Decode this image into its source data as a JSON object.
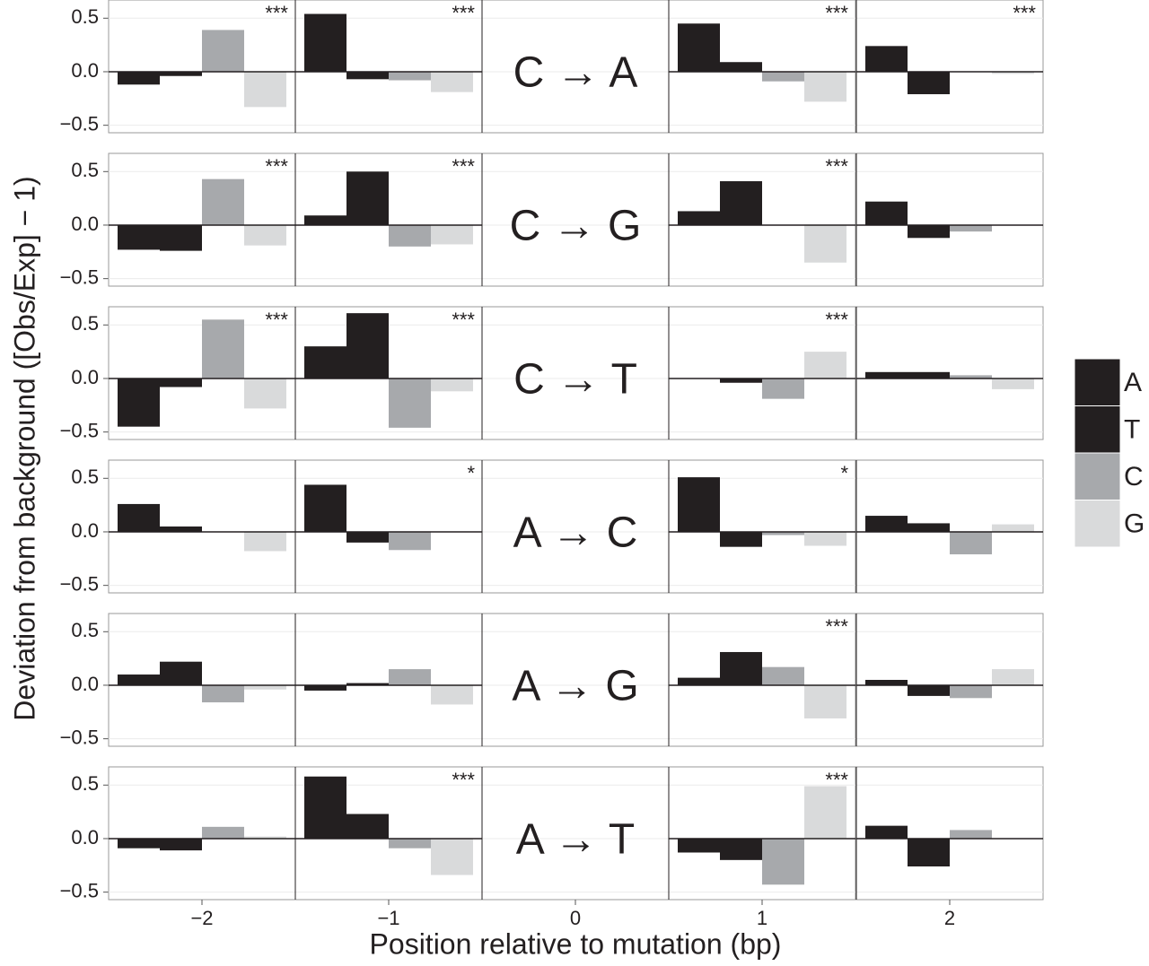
{
  "chart_data": {
    "type": "bar",
    "y_label": "Deviation from background ([Obs/Exp] − 1)",
    "x_label": "Position relative to mutation (bp)",
    "positions": [
      "−2",
      "−1",
      "0",
      "1",
      "2"
    ],
    "series": [
      {
        "name": "A",
        "color": "#231f20"
      },
      {
        "name": "T",
        "color": "#231f20"
      },
      {
        "name": "C",
        "color": "#a7a9ac"
      },
      {
        "name": "G",
        "color": "#d9dadb"
      }
    ],
    "ylim": [
      -0.57,
      0.67
    ],
    "yticks": [
      0.5,
      {
        "value": 0,
        "label": "0.0"
      },
      {
        "value": -0.5,
        "label": "−0.5"
      }
    ],
    "grid": true,
    "rows": [
      {
        "mutation": "C → A",
        "panels": [
          {
            "values": [
              -0.12,
              -0.04,
              0.39,
              -0.33
            ],
            "annotation": "***"
          },
          {
            "values": [
              0.54,
              -0.07,
              -0.08,
              -0.19
            ],
            "annotation": "***"
          },
          null,
          {
            "values": [
              0.45,
              0.09,
              -0.09,
              -0.28
            ],
            "annotation": "***"
          },
          {
            "values": [
              0.24,
              -0.21,
              0.0,
              -0.02
            ],
            "annotation": "***"
          }
        ]
      },
      {
        "mutation": "C → G",
        "panels": [
          {
            "values": [
              -0.23,
              -0.24,
              0.43,
              -0.19
            ],
            "annotation": "***"
          },
          {
            "values": [
              0.09,
              0.5,
              -0.2,
              -0.18
            ],
            "annotation": "***"
          },
          null,
          {
            "values": [
              0.13,
              0.41,
              0.0,
              -0.35
            ],
            "annotation": "***"
          },
          {
            "values": [
              0.22,
              -0.12,
              -0.06,
              0.0
            ]
          }
        ]
      },
      {
        "mutation": "C → T",
        "panels": [
          {
            "values": [
              -0.45,
              -0.08,
              0.55,
              -0.28
            ],
            "annotation": "***"
          },
          {
            "values": [
              0.3,
              0.61,
              -0.46,
              -0.12
            ],
            "annotation": "***"
          },
          null,
          {
            "values": [
              0.0,
              -0.04,
              -0.19,
              0.25
            ],
            "annotation": "***"
          },
          {
            "values": [
              0.06,
              0.06,
              0.03,
              -0.1
            ]
          }
        ]
      },
      {
        "mutation": "A → C",
        "panels": [
          {
            "values": [
              0.26,
              0.05,
              0.0,
              -0.18
            ]
          },
          {
            "values": [
              0.44,
              -0.1,
              -0.17,
              0.0
            ],
            "annotation": "*"
          },
          null,
          {
            "values": [
              0.51,
              -0.14,
              -0.03,
              -0.13
            ],
            "annotation": "*"
          },
          {
            "values": [
              0.15,
              0.08,
              -0.21,
              0.07
            ]
          }
        ]
      },
      {
        "mutation": "A → G",
        "panels": [
          {
            "values": [
              0.1,
              0.22,
              -0.16,
              -0.04
            ]
          },
          {
            "values": [
              -0.05,
              0.02,
              0.15,
              -0.18
            ]
          },
          null,
          {
            "values": [
              0.07,
              0.31,
              0.17,
              -0.31
            ],
            "annotation": "***"
          },
          {
            "values": [
              0.05,
              -0.1,
              -0.12,
              0.15
            ]
          }
        ]
      },
      {
        "mutation": "A → T",
        "panels": [
          {
            "values": [
              -0.09,
              -0.11,
              0.11,
              0.02
            ]
          },
          {
            "values": [
              0.58,
              0.23,
              -0.09,
              -0.34
            ],
            "annotation": "***"
          },
          null,
          {
            "values": [
              -0.13,
              -0.2,
              -0.43,
              0.49
            ],
            "annotation": "***"
          },
          {
            "values": [
              0.12,
              -0.26,
              0.08,
              0.0
            ]
          }
        ]
      }
    ]
  }
}
